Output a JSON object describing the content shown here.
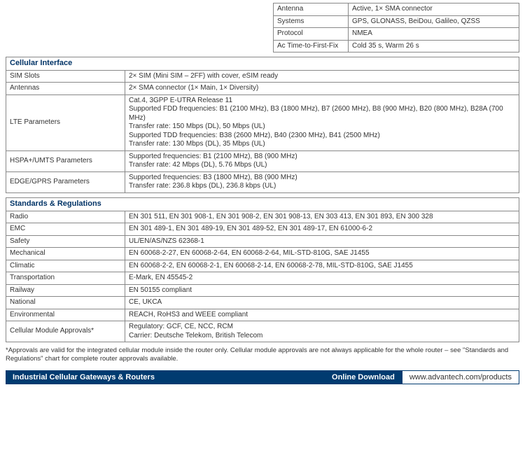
{
  "gnss": {
    "rows": [
      {
        "label": "Antenna",
        "value": "Active, 1× SMA connector"
      },
      {
        "label": "Systems",
        "value": "GPS, GLONASS, BeiDou, Galileo, QZSS"
      },
      {
        "label": "Protocol",
        "value": "NMEA"
      },
      {
        "label": "Ac Time-to-First-Fix",
        "value": "Cold 35 s, Warm 26 s"
      }
    ]
  },
  "cellular": {
    "title": "Cellular Interface",
    "rows": [
      {
        "label": "SIM Slots",
        "value": "2× SIM (Mini SIM – 2FF) with cover, eSIM ready"
      },
      {
        "label": "Antennas",
        "value": "2× SMA connector (1× Main, 1× Diversity)"
      },
      {
        "label": "LTE Parameters",
        "value": "Cat.4, 3GPP E-UTRA Release 11\nSupported FDD frequencies: B1 (2100 MHz), B3 (1800 MHz), B7 (2600 MHz), B8 (900 MHz), B20 (800 MHz), B28A (700 MHz)\nTransfer rate: 150 Mbps (DL), 50 Mbps (UL)\nSupported TDD frequencies: B38 (2600 MHz), B40 (2300 MHz), B41 (2500 MHz)\nTransfer rate: 130 Mbps (DL), 35 Mbps (UL)"
      },
      {
        "label": "HSPA+/UMTS Parameters",
        "value": "Supported frequencies: B1 (2100 MHz), B8 (900 MHz)\nTransfer rate: 42 Mbps (DL), 5.76 Mbps (UL)"
      },
      {
        "label": "EDGE/GPRS Parameters",
        "value": "Supported frequencies: B3 (1800 MHz), B8 (900 MHz)\nTransfer rate: 236.8 kbps (DL), 236.8 kbps (UL)"
      }
    ]
  },
  "standards": {
    "title": "Standards & Regulations",
    "rows": [
      {
        "label": "Radio",
        "value": "EN 301 511, EN 301 908-1, EN 301 908-2, EN 301 908-13, EN 303 413, EN 301 893, EN 300 328"
      },
      {
        "label": "EMC",
        "value": "EN 301 489-1, EN 301 489-19, EN 301 489-52, EN 301 489-17, EN 61000-6-2"
      },
      {
        "label": "Safety",
        "value": "UL/EN/AS/NZS 62368-1"
      },
      {
        "label": "Mechanical",
        "value": "EN 60068-2-27, EN 60068-2-64, EN 60068-2-64, MIL-STD-810G, SAE J1455"
      },
      {
        "label": "Climatic",
        "value": "EN 60068-2-2, EN 60068-2-1, EN 60068-2-14, EN 60068-2-78, MIL-STD-810G, SAE J1455"
      },
      {
        "label": "Transportation",
        "value": "E-Mark, EN 45545-2"
      },
      {
        "label": "Railway",
        "value": "EN 50155 compliant"
      },
      {
        "label": "National",
        "value": "CE, UKCA"
      },
      {
        "label": "Environmental",
        "value": "REACH, RoHS3 and WEEE compliant"
      },
      {
        "label": "Cellular Module Approvals*",
        "value": "Regulatory: GCF, CE, NCC, RCM\nCarrier: Deutsche Telekom, British Telecom"
      }
    ]
  },
  "footnote": "*Approvals are valid for the integrated cellular module inside the router only. Cellular module approvals are not always applicable for the whole router – see \"Standards and Regulations\" chart for complete router approvals available.",
  "footer": {
    "category": "Industrial Cellular Gateways & Routers",
    "download_label": "Online Download",
    "url": "www.advantech.com/products"
  },
  "colors": {
    "heading": "#003366",
    "footer_bg": "#003b70",
    "border": "#888888",
    "text": "#333333"
  }
}
